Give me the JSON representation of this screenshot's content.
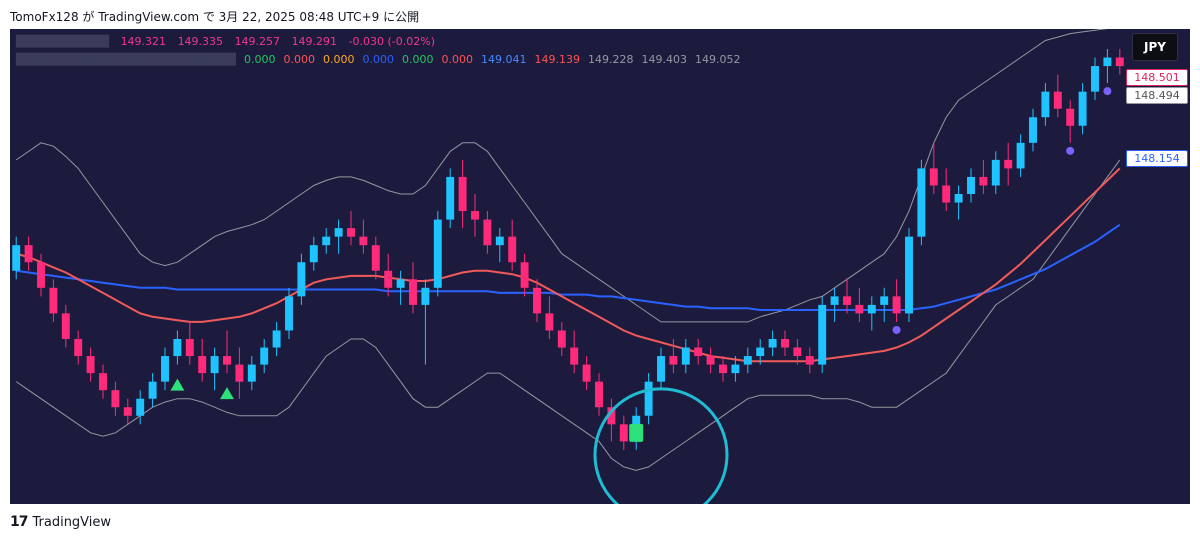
{
  "attribution": "TomoFx128 が TradingView.com で 3月 22, 2025 08:48 UTC+9 に公開",
  "footer": {
    "logo_icon": "tradingview-logo-icon",
    "brand": "TradingView"
  },
  "currency_badge": "JPY",
  "legend": {
    "ohlc": [
      {
        "value": "149.321",
        "color": "#f23690"
      },
      {
        "value": "149.335",
        "color": "#f23690"
      },
      {
        "value": "149.257",
        "color": "#f23690"
      },
      {
        "value": "149.291",
        "color": "#f23690"
      },
      {
        "value": "-0.030 (-0.02%)",
        "color": "#f23690"
      }
    ],
    "indicators": [
      {
        "value": "0.000",
        "color": "#22c55e"
      },
      {
        "value": "0.000",
        "color": "#ff5252"
      },
      {
        "value": "0.000",
        "color": "#ffa726"
      },
      {
        "value": "0.000",
        "color": "#2962ff"
      },
      {
        "value": "0.000",
        "color": "#22c55e"
      },
      {
        "value": "0.000",
        "color": "#ff5252"
      },
      {
        "value": "149.041",
        "color": "#448aff"
      },
      {
        "value": "149.139",
        "color": "#ff5252"
      },
      {
        "value": "149.228",
        "color": "#9598a1"
      },
      {
        "value": "149.403",
        "color": "#9598a1"
      },
      {
        "value": "149.052",
        "color": "#9598a1"
      }
    ]
  },
  "price_tags": {
    "red": "148.501",
    "gray": "148.494",
    "blue": "148.154"
  },
  "chart_data": {
    "type": "candlestick",
    "ylim": [
      146.6,
      149.15
    ],
    "candles": [
      [
        147.85,
        148.05,
        147.8,
        148.0
      ],
      [
        148.0,
        148.05,
        147.85,
        147.9
      ],
      [
        147.9,
        147.95,
        147.7,
        147.75
      ],
      [
        147.75,
        147.8,
        147.55,
        147.6
      ],
      [
        147.6,
        147.65,
        147.4,
        147.45
      ],
      [
        147.45,
        147.5,
        147.3,
        147.35
      ],
      [
        147.35,
        147.4,
        147.2,
        147.25
      ],
      [
        147.25,
        147.3,
        147.1,
        147.15
      ],
      [
        147.15,
        147.2,
        147.0,
        147.05
      ],
      [
        147.05,
        147.1,
        146.95,
        147.0
      ],
      [
        147.0,
        147.15,
        146.95,
        147.1
      ],
      [
        147.1,
        147.25,
        147.05,
        147.2
      ],
      [
        147.2,
        147.4,
        147.15,
        147.35
      ],
      [
        147.35,
        147.5,
        147.3,
        147.45
      ],
      [
        147.45,
        147.55,
        147.3,
        147.35
      ],
      [
        147.35,
        147.45,
        147.2,
        147.25
      ],
      [
        147.25,
        147.4,
        147.15,
        147.35
      ],
      [
        147.35,
        147.5,
        147.25,
        147.3
      ],
      [
        147.3,
        147.4,
        147.1,
        147.2
      ],
      [
        147.2,
        147.35,
        147.15,
        147.3
      ],
      [
        147.3,
        147.45,
        147.25,
        147.4
      ],
      [
        147.4,
        147.55,
        147.35,
        147.5
      ],
      [
        147.5,
        147.75,
        147.45,
        147.7
      ],
      [
        147.7,
        147.95,
        147.65,
        147.9
      ],
      [
        147.9,
        148.05,
        147.85,
        148.0
      ],
      [
        148.0,
        148.1,
        147.95,
        148.05
      ],
      [
        148.05,
        148.15,
        147.95,
        148.1
      ],
      [
        148.1,
        148.2,
        148.0,
        148.05
      ],
      [
        148.05,
        148.15,
        147.95,
        148.0
      ],
      [
        148.0,
        148.05,
        147.8,
        147.85
      ],
      [
        147.85,
        147.95,
        147.7,
        147.75
      ],
      [
        147.75,
        147.85,
        147.65,
        147.8
      ],
      [
        147.8,
        147.9,
        147.6,
        147.65
      ],
      [
        147.65,
        147.8,
        147.3,
        147.75
      ],
      [
        147.75,
        148.2,
        147.7,
        148.15
      ],
      [
        148.15,
        148.45,
        148.1,
        148.4
      ],
      [
        148.4,
        148.5,
        148.1,
        148.2
      ],
      [
        148.2,
        148.3,
        148.05,
        148.15
      ],
      [
        148.15,
        148.2,
        147.95,
        148.0
      ],
      [
        148.0,
        148.1,
        147.9,
        148.05
      ],
      [
        148.05,
        148.15,
        147.85,
        147.9
      ],
      [
        147.9,
        147.95,
        147.7,
        147.75
      ],
      [
        147.75,
        147.8,
        147.55,
        147.6
      ],
      [
        147.6,
        147.7,
        147.45,
        147.5
      ],
      [
        147.5,
        147.55,
        147.35,
        147.4
      ],
      [
        147.4,
        147.5,
        147.25,
        147.3
      ],
      [
        147.3,
        147.35,
        147.15,
        147.2
      ],
      [
        147.2,
        147.25,
        147.0,
        147.05
      ],
      [
        147.05,
        147.1,
        146.85,
        146.95
      ],
      [
        146.95,
        147.0,
        146.8,
        146.85
      ],
      [
        146.85,
        147.05,
        146.8,
        147.0
      ],
      [
        147.0,
        147.25,
        146.95,
        147.2
      ],
      [
        147.2,
        147.4,
        147.15,
        147.35
      ],
      [
        147.35,
        147.45,
        147.25,
        147.3
      ],
      [
        147.3,
        147.45,
        147.25,
        147.4
      ],
      [
        147.4,
        147.45,
        147.3,
        147.35
      ],
      [
        147.35,
        147.4,
        147.25,
        147.3
      ],
      [
        147.3,
        147.35,
        147.2,
        147.25
      ],
      [
        147.25,
        147.35,
        147.2,
        147.3
      ],
      [
        147.3,
        147.4,
        147.25,
        147.35
      ],
      [
        147.35,
        147.45,
        147.3,
        147.4
      ],
      [
        147.4,
        147.5,
        147.35,
        147.45
      ],
      [
        147.45,
        147.5,
        147.35,
        147.4
      ],
      [
        147.4,
        147.45,
        147.3,
        147.35
      ],
      [
        147.35,
        147.4,
        147.25,
        147.3
      ],
      [
        147.3,
        147.7,
        147.25,
        147.65
      ],
      [
        147.65,
        147.75,
        147.55,
        147.7
      ],
      [
        147.7,
        147.8,
        147.6,
        147.65
      ],
      [
        147.65,
        147.75,
        147.55,
        147.6
      ],
      [
        147.6,
        147.7,
        147.5,
        147.65
      ],
      [
        147.65,
        147.75,
        147.55,
        147.7
      ],
      [
        147.7,
        147.8,
        147.55,
        147.6
      ],
      [
        147.6,
        148.1,
        147.55,
        148.05
      ],
      [
        148.05,
        148.5,
        148.0,
        148.45
      ],
      [
        148.45,
        148.6,
        148.3,
        148.35
      ],
      [
        148.35,
        148.45,
        148.2,
        148.25
      ],
      [
        148.25,
        148.35,
        148.15,
        148.3
      ],
      [
        148.3,
        148.45,
        148.25,
        148.4
      ],
      [
        148.4,
        148.5,
        148.3,
        148.35
      ],
      [
        148.35,
        148.55,
        148.3,
        148.5
      ],
      [
        148.5,
        148.6,
        148.35,
        148.45
      ],
      [
        148.45,
        148.65,
        148.4,
        148.6
      ],
      [
        148.6,
        148.8,
        148.55,
        148.75
      ],
      [
        148.75,
        148.95,
        148.7,
        148.9
      ],
      [
        148.9,
        149.0,
        148.75,
        148.8
      ],
      [
        148.8,
        148.85,
        148.6,
        148.7
      ],
      [
        148.7,
        148.95,
        148.65,
        148.9
      ],
      [
        148.9,
        149.1,
        148.85,
        149.05
      ],
      [
        149.05,
        149.15,
        148.95,
        149.1
      ],
      [
        149.1,
        149.15,
        149.0,
        149.05
      ]
    ],
    "ma_slow": [
      147.85,
      147.84,
      147.83,
      147.82,
      147.81,
      147.8,
      147.79,
      147.78,
      147.77,
      147.76,
      147.75,
      147.75,
      147.75,
      147.74,
      147.74,
      147.74,
      147.74,
      147.74,
      147.74,
      147.74,
      147.74,
      147.74,
      147.74,
      147.74,
      147.74,
      147.74,
      147.74,
      147.74,
      147.74,
      147.74,
      147.73,
      147.73,
      147.73,
      147.73,
      147.73,
      147.73,
      147.73,
      147.73,
      147.73,
      147.72,
      147.72,
      147.72,
      147.72,
      147.72,
      147.71,
      147.71,
      147.71,
      147.7,
      147.7,
      147.69,
      147.68,
      147.67,
      147.66,
      147.65,
      147.64,
      147.64,
      147.63,
      147.63,
      147.63,
      147.63,
      147.62,
      147.62,
      147.62,
      147.62,
      147.62,
      147.62,
      147.62,
      147.62,
      147.62,
      147.62,
      147.62,
      147.62,
      147.62,
      147.63,
      147.64,
      147.66,
      147.68,
      147.7,
      147.72,
      147.74,
      147.77,
      147.8,
      147.83,
      147.86,
      147.9,
      147.94,
      147.98,
      148.02,
      148.07,
      148.12
    ],
    "ma_fast": [
      147.95,
      147.93,
      147.9,
      147.87,
      147.84,
      147.8,
      147.76,
      147.72,
      147.68,
      147.64,
      147.6,
      147.58,
      147.57,
      147.56,
      147.55,
      147.55,
      147.56,
      147.57,
      147.58,
      147.6,
      147.63,
      147.66,
      147.7,
      147.74,
      147.78,
      147.8,
      147.81,
      147.82,
      147.82,
      147.82,
      147.81,
      147.8,
      147.79,
      147.79,
      147.8,
      147.82,
      147.84,
      147.85,
      147.85,
      147.84,
      147.83,
      147.81,
      147.78,
      147.74,
      147.7,
      147.66,
      147.62,
      147.58,
      147.54,
      147.5,
      147.47,
      147.45,
      147.43,
      147.41,
      147.39,
      147.37,
      147.35,
      147.34,
      147.33,
      147.32,
      147.32,
      147.32,
      147.32,
      147.32,
      147.32,
      147.33,
      147.34,
      147.35,
      147.36,
      147.37,
      147.38,
      147.4,
      147.43,
      147.47,
      147.52,
      147.57,
      147.62,
      147.67,
      147.72,
      147.77,
      147.83,
      147.89,
      147.96,
      148.03,
      148.1,
      148.17,
      148.24,
      148.31,
      148.38,
      148.45
    ],
    "bb_upper": [
      148.5,
      148.55,
      148.6,
      148.58,
      148.52,
      148.45,
      148.35,
      148.25,
      148.15,
      148.05,
      147.95,
      147.9,
      147.88,
      147.9,
      147.95,
      148.0,
      148.05,
      148.08,
      148.1,
      148.12,
      148.15,
      148.2,
      148.25,
      148.3,
      148.35,
      148.38,
      148.4,
      148.4,
      148.38,
      148.35,
      148.32,
      148.3,
      148.3,
      148.35,
      148.45,
      148.55,
      148.6,
      148.6,
      148.55,
      148.45,
      148.35,
      148.25,
      148.15,
      148.05,
      147.95,
      147.9,
      147.85,
      147.8,
      147.75,
      147.7,
      147.65,
      147.6,
      147.55,
      147.55,
      147.55,
      147.55,
      147.55,
      147.55,
      147.55,
      147.55,
      147.58,
      147.6,
      147.62,
      147.65,
      147.68,
      147.7,
      147.75,
      147.8,
      147.85,
      147.9,
      147.95,
      148.05,
      148.2,
      148.4,
      148.6,
      148.75,
      148.85,
      148.9,
      148.95,
      149.0,
      149.05,
      149.1,
      149.15,
      149.2,
      149.22,
      149.24,
      149.25,
      149.26,
      149.27,
      149.28
    ],
    "bb_lower": [
      147.2,
      147.15,
      147.1,
      147.05,
      147.0,
      146.95,
      146.9,
      146.88,
      146.9,
      146.95,
      147.0,
      147.05,
      147.08,
      147.1,
      147.1,
      147.08,
      147.05,
      147.02,
      147.0,
      147.0,
      147.0,
      147.0,
      147.05,
      147.15,
      147.25,
      147.35,
      147.4,
      147.45,
      147.45,
      147.4,
      147.3,
      147.2,
      147.1,
      147.05,
      147.05,
      147.1,
      147.15,
      147.2,
      147.25,
      147.25,
      147.2,
      147.15,
      147.1,
      147.05,
      147.0,
      146.95,
      146.9,
      146.85,
      146.75,
      146.7,
      146.68,
      146.7,
      146.75,
      146.8,
      146.85,
      146.9,
      146.95,
      147.0,
      147.05,
      147.1,
      147.12,
      147.12,
      147.12,
      147.12,
      147.12,
      147.1,
      147.1,
      147.1,
      147.08,
      147.05,
      147.05,
      147.05,
      147.1,
      147.15,
      147.2,
      147.25,
      147.35,
      147.45,
      147.55,
      147.65,
      147.7,
      147.75,
      147.8,
      147.9,
      148.0,
      148.1,
      148.2,
      148.3,
      148.4,
      148.5
    ],
    "signals_up": [
      13,
      17
    ],
    "signals_down": [
      70
    ],
    "signals_dot": [
      71,
      85,
      88
    ],
    "highlight_candle": 49
  }
}
